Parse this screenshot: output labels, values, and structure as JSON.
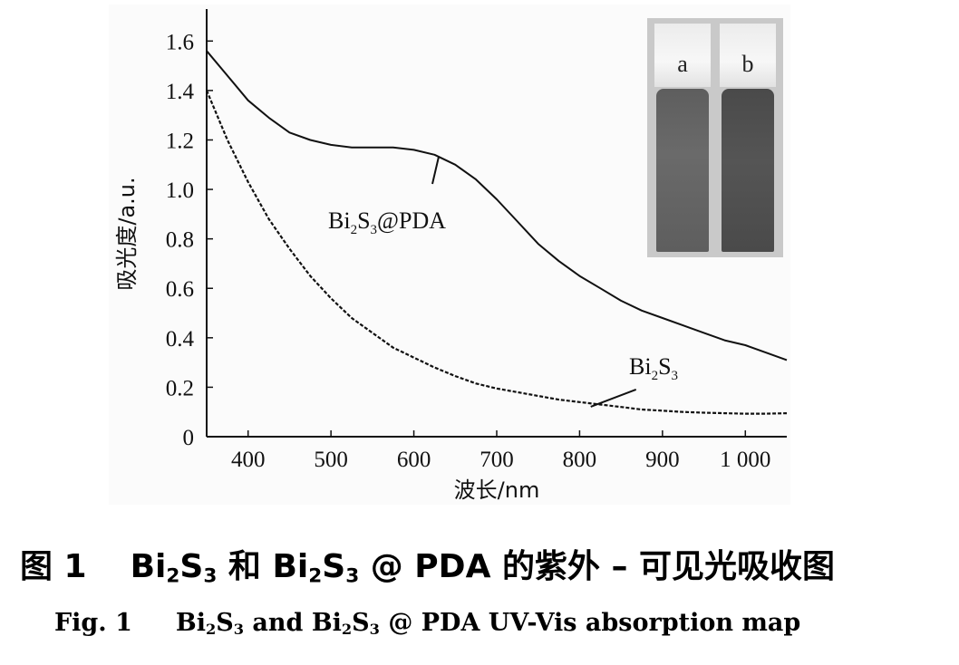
{
  "chart_data": {
    "type": "line",
    "xlabel": "波长/nm",
    "ylabel": "吸光度/a.u.",
    "xlim": [
      350,
      1050
    ],
    "ylim": [
      0,
      1.7
    ],
    "x_ticks": [
      400,
      500,
      600,
      700,
      800,
      900,
      1000
    ],
    "x_tick_labels": [
      "400",
      "500",
      "600",
      "700",
      "800",
      "900",
      "1 000"
    ],
    "y_ticks": [
      0,
      0.2,
      0.4,
      0.6,
      0.8,
      1.0,
      1.2,
      1.4,
      1.6
    ],
    "y_tick_labels": [
      "0",
      "0.2",
      "0.4",
      "0.6",
      "0.8",
      "1.0",
      "1.2",
      "1.4",
      "1.6"
    ],
    "grid": false,
    "series": [
      {
        "name": "Bi2S3@PDA",
        "line_style": "solid",
        "x": [
          350,
          375,
          400,
          425,
          450,
          475,
          500,
          525,
          550,
          575,
          600,
          625,
          650,
          675,
          700,
          725,
          750,
          775,
          800,
          825,
          850,
          875,
          900,
          925,
          950,
          975,
          1000,
          1025,
          1050
        ],
        "y": [
          1.56,
          1.46,
          1.36,
          1.29,
          1.23,
          1.2,
          1.18,
          1.17,
          1.17,
          1.17,
          1.16,
          1.14,
          1.1,
          1.04,
          0.96,
          0.87,
          0.78,
          0.71,
          0.65,
          0.6,
          0.55,
          0.51,
          0.48,
          0.45,
          0.42,
          0.39,
          0.37,
          0.34,
          0.31
        ]
      },
      {
        "name": "Bi2S3",
        "line_style": "dashed",
        "x": [
          350,
          375,
          400,
          425,
          450,
          475,
          500,
          525,
          550,
          575,
          600,
          625,
          650,
          675,
          700,
          725,
          750,
          775,
          800,
          825,
          850,
          875,
          900,
          925,
          950,
          975,
          1000,
          1025,
          1050
        ],
        "y": [
          1.4,
          1.2,
          1.03,
          0.88,
          0.76,
          0.65,
          0.56,
          0.48,
          0.42,
          0.36,
          0.32,
          0.28,
          0.245,
          0.215,
          0.195,
          0.18,
          0.165,
          0.15,
          0.14,
          0.13,
          0.12,
          0.11,
          0.105,
          0.1,
          0.097,
          0.095,
          0.093,
          0.093,
          0.095
        ]
      }
    ],
    "annotations": [
      {
        "base": "Bi",
        "sub1": "2",
        "mid": "S",
        "sub2": "3",
        "suffix": "@PDA",
        "series": "Bi2S3@PDA",
        "at_x": 630
      },
      {
        "base": "Bi",
        "sub1": "2",
        "mid": "S",
        "sub2": "3",
        "suffix": "",
        "series": "Bi2S3",
        "at_x": 820
      }
    ],
    "inset": {
      "labels": [
        "a",
        "b"
      ],
      "colors": {
        "a": "#5e5e5e",
        "b": "#4a4a4a"
      }
    }
  },
  "caption_cn": {
    "prefix": "图 1",
    "a_base": "Bi",
    "a_sub1": "2",
    "a_mid": "S",
    "a_sub2": "3",
    "and": " 和 ",
    "b_base": "Bi",
    "b_sub1": "2",
    "b_mid": "S",
    "b_sub2": "3",
    "tail": " @ PDA 的紫外 – 可见光吸收图"
  },
  "caption_en": {
    "prefix": "Fig. 1",
    "a_base": "Bi",
    "a_sub1": "2",
    "a_mid": "S",
    "a_sub2": "3",
    "and": " and ",
    "b_base": "Bi",
    "b_sub1": "2",
    "b_mid": "S",
    "b_sub2": "3",
    "tail": " @ PDA UV-Vis absorption map"
  }
}
